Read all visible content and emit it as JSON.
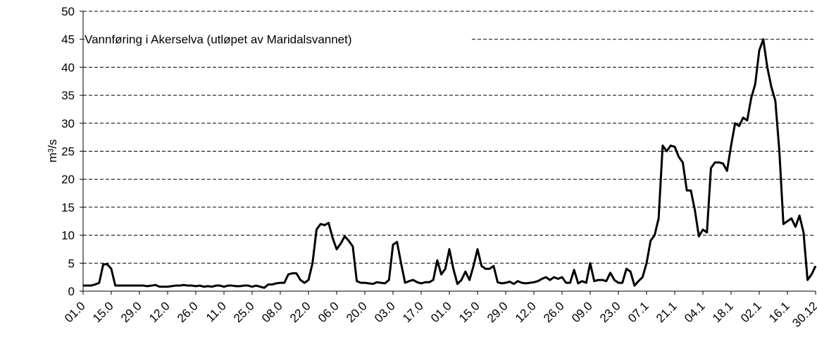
{
  "chart_data": {
    "type": "line",
    "title": "Vannføring i Akerselva (utløpet av  Maridalsvannet)",
    "y_label": "m³/s",
    "categories": [
      "01.0",
      null,
      null,
      null,
      null,
      null,
      null,
      "15.0",
      null,
      null,
      null,
      null,
      null,
      null,
      "29.0",
      null,
      null,
      null,
      null,
      null,
      null,
      "12.0",
      null,
      null,
      null,
      null,
      null,
      null,
      "26.0",
      null,
      null,
      null,
      null,
      null,
      null,
      "11.0",
      null,
      null,
      null,
      null,
      null,
      null,
      "25.0",
      null,
      null,
      null,
      null,
      null,
      null,
      "08.0",
      null,
      null,
      null,
      null,
      null,
      null,
      "22.0",
      null,
      null,
      null,
      null,
      null,
      null,
      "06.0",
      null,
      null,
      null,
      null,
      null,
      null,
      "20.0",
      null,
      null,
      null,
      null,
      null,
      null,
      "03.0",
      null,
      null,
      null,
      null,
      null,
      null,
      "17.0",
      null,
      null,
      null,
      null,
      null,
      null,
      "01.0",
      null,
      null,
      null,
      null,
      null,
      null,
      "15.0",
      null,
      null,
      null,
      null,
      null,
      null,
      "29.0",
      null,
      null,
      null,
      null,
      null,
      null,
      "12.0",
      null,
      null,
      null,
      null,
      null,
      null,
      "26.0",
      null,
      null,
      null,
      null,
      null,
      null,
      "09.0",
      null,
      null,
      null,
      null,
      null,
      null,
      "23.0",
      null,
      null,
      null,
      null,
      null,
      null,
      "07.1",
      null,
      null,
      null,
      null,
      null,
      null,
      "21.1",
      null,
      null,
      null,
      null,
      null,
      null,
      "04.1",
      null,
      null,
      null,
      null,
      null,
      null,
      "18.1",
      null,
      null,
      null,
      null,
      null,
      null,
      "02.1",
      null,
      null,
      null,
      null,
      null,
      null,
      "16.1",
      null,
      null,
      null,
      null,
      null,
      null,
      "30.12"
    ],
    "series": [
      {
        "name": "Vannføring",
        "color": "#000000",
        "values": [
          1,
          1,
          1,
          1.2,
          1.5,
          4.8,
          4.8,
          4,
          1,
          1,
          1,
          1,
          1,
          1,
          1,
          1,
          0.9,
          1,
          1.1,
          0.8,
          0.8,
          0.8,
          0.9,
          1,
          1,
          1.1,
          1,
          1,
          0.9,
          1,
          0.8,
          0.9,
          0.8,
          1,
          1,
          0.8,
          1,
          1,
          0.9,
          0.9,
          1,
          1,
          0.8,
          1,
          0.8,
          0.6,
          1.2,
          1.2,
          1.4,
          1.5,
          1.5,
          3,
          3.2,
          3.2,
          2,
          1.5,
          2,
          5,
          11,
          12,
          11.8,
          12.2,
          9.5,
          7.5,
          8.5,
          9.8,
          9,
          8,
          1.8,
          1.5,
          1.5,
          1.4,
          1.3,
          1.6,
          1.5,
          1.4,
          2,
          8.3,
          8.8,
          5,
          1.5,
          1.8,
          2,
          1.6,
          1.4,
          1.6,
          1.6,
          2,
          5.5,
          3,
          4,
          7.5,
          4,
          1.3,
          2,
          3.5,
          2,
          4.5,
          7.5,
          4.5,
          4,
          4,
          4.5,
          1.6,
          1.4,
          1.5,
          1.7,
          1.3,
          1.8,
          1.5,
          1.4,
          1.5,
          1.6,
          1.8,
          2.2,
          2.5,
          2,
          2.5,
          2.2,
          2.5,
          1.5,
          1.5,
          3.8,
          1.4,
          1.8,
          1.5,
          5,
          1.8,
          2,
          2,
          1.8,
          3.3,
          2,
          1.5,
          1.5,
          4,
          3.5,
          1,
          1.8,
          2.5,
          5,
          9,
          10,
          13,
          26,
          25,
          26,
          25.8,
          24,
          23,
          18,
          18,
          14.5,
          9.8,
          11,
          10.5,
          22,
          23,
          23,
          22.8,
          21.5,
          26,
          30,
          29.5,
          31,
          30.5,
          34.5,
          37,
          43,
          45,
          40,
          36.5,
          34,
          25,
          12,
          12.5,
          13,
          11.5,
          13.5,
          10.5,
          2,
          3,
          4.5
        ]
      }
    ],
    "ylim": [
      0,
      50
    ],
    "yticks": [
      0,
      5,
      10,
      15,
      20,
      25,
      30,
      35,
      40,
      45,
      50
    ],
    "grid": true
  }
}
